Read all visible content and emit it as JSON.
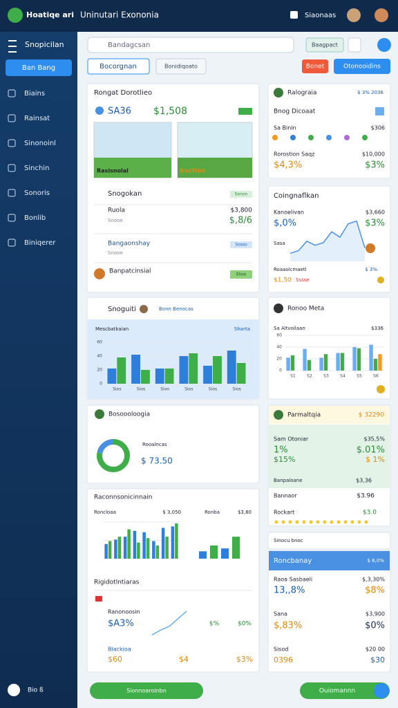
{
  "header": {
    "brand": "Hoatiqe ari",
    "title": "Uninutari Exononia",
    "user": "Siaonaas"
  },
  "sidebar": {
    "title": "Snopicilan",
    "button": "Ban Bang",
    "items": [
      "Biains",
      "Rainsat",
      "Sinonoinl",
      "Sinchin",
      "Sonoris",
      "Bonlib",
      "Biniqerer"
    ],
    "footer": "Bio ß"
  },
  "toolbar": {
    "search": "Bandagcsan",
    "filter": "Baagpact",
    "tab_1": "Bocorgnan",
    "tab_2": "Bonidiqoato",
    "reset": "Bonet",
    "action": "Otonooidins"
  },
  "overview": {
    "title": "Rongat Dorotlieo",
    "stat": "SA36",
    "amount": "$1,508",
    "captions": [
      "Rasisnolal",
      "Suctios"
    ],
    "list_title": "Snogokan",
    "badge": "Sonon",
    "row_1": "Ruola",
    "row_1_sub": "Snooe",
    "row_1_amount": "$3,800",
    "row_1_value": "$,8/6",
    "row_2": "Bangaonshay",
    "row_2_sub": "Snooe",
    "row_2_badge": "Sosso",
    "row_3": "Banpatcinsial",
    "row_3_badge": "Shoo"
  },
  "profile": {
    "title": "Ralograia",
    "meta": "$ 3% 2036",
    "subtitle": "Bnog Dicoaat",
    "row_label": "Sa Binin",
    "row_value": "$306",
    "label_2": "Rorostion Saqz",
    "value_2": "$10,000",
    "big_1": "$4,3%",
    "big_2": "$3%"
  },
  "trend": {
    "title": "Coingnaflkan",
    "label_1": "Kanoelivan",
    "value_1": "$3,660",
    "big_1": "$,0%",
    "big_2": "$3%",
    "label_2": "Sasa",
    "label_3": "Roaaolcmaetl",
    "value_3": "$ 3%",
    "foot": "$1,50",
    "foot_red": "Sssse",
    "values": [
      12,
      16,
      30,
      24,
      28,
      44,
      36,
      56,
      60,
      20
    ],
    "ylim": [
      0,
      70
    ]
  },
  "spend": {
    "title": "Snoguiti",
    "chip": "Bonn Benocas",
    "header": "Mescbatkaian",
    "header_value": "Sharta",
    "categories": [
      "Sios",
      "Sios",
      "Sioo",
      "Sios",
      "Sios",
      "Sios"
    ],
    "ylim": [
      0,
      60
    ],
    "yticks": [
      0,
      20,
      40,
      60
    ],
    "series": [
      {
        "color": "#2f7fd8",
        "values": [
          22,
          42,
          22,
          40,
          26,
          48
        ]
      },
      {
        "color": "#3fae49",
        "values": [
          38,
          20,
          22,
          44,
          40,
          30
        ]
      }
    ]
  },
  "profile_2": {
    "title": "Ronoo Meta",
    "header": "Sa Altvoilaan",
    "header_value": "$336",
    "categories": [
      "S1",
      "S2",
      "S3",
      "S4",
      "S5",
      "S6"
    ],
    "ylim": [
      0,
      60
    ],
    "yticks": [
      0,
      20,
      40,
      60
    ],
    "series": [
      {
        "color": "#6aaef0",
        "values": [
          22,
          37,
          22,
          30,
          40,
          44
        ]
      },
      {
        "color": "#3fae49",
        "values": [
          26,
          18,
          28,
          30,
          38,
          20
        ]
      },
      {
        "color": "#f39a1e",
        "values": [
          0,
          0,
          0,
          0,
          0,
          28
        ]
      }
    ]
  },
  "donut": {
    "title": "Bosoooloogia",
    "label": "Rooalncas",
    "amount": "$ 73.50",
    "values": [
      78,
      22
    ],
    "colors": [
      "#3fae49",
      "#4a90e2"
    ]
  },
  "finance": {
    "title": "Parmaltqia",
    "meta": "$ 32290",
    "label_1": "Sam Otoniar",
    "value_1": "$35,5%",
    "big_1": "1%",
    "big_2": "$.01%",
    "big_3": "$15%",
    "big_4": "$ 1%",
    "label_2": "Banpaloane",
    "value_2": "$3,36",
    "label_3": "Bannaor",
    "value_3": "$3.96",
    "label_4": "Rockart",
    "value_4": "$3.0"
  },
  "report": {
    "title": "Raconnsonicinnain",
    "header": "Roncloaa",
    "header_value": "$ 3,050",
    "header_2": "Ronba",
    "header_2_value": "$3,80",
    "ylim": [
      0,
      50
    ],
    "yticks": [
      0,
      25,
      50
    ],
    "series": [
      {
        "color": "#2f7fd8",
        "values": [
          20,
          26,
          30,
          38,
          36,
          24,
          42,
          44
        ]
      },
      {
        "color": "#3fae49",
        "values": [
          24,
          30,
          40,
          22,
          28,
          18,
          30,
          48
        ]
      }
    ],
    "mini": [
      10,
      18,
      14,
      30
    ],
    "sub_title": "Rigidotlntiaras",
    "row_1": "Ranonoosin",
    "row_1_value": "$A3%",
    "row_1_a": "$%",
    "row_1_b": "$0%",
    "row_2": "Blackioa",
    "row_2_value": "$60",
    "row_2_a": "$4",
    "row_2_b": "$3%",
    "line": [
      5,
      10,
      14,
      22,
      30
    ]
  },
  "summary": {
    "bar": "Sinocu bnoc",
    "title": "Roncbanay",
    "meta": "$ 6,0%",
    "label_1": "Raoa Sasbaeli",
    "value_1": "$,3,30%",
    "big_1": "13,,8%",
    "big_2": "$8%",
    "label_2": "Sana",
    "value_2": "$3,900",
    "big_3": "$,83%",
    "big_4": "$0%",
    "label_3": "Sisod",
    "value_3": "$20 00",
    "big_5": "0396",
    "big_6": "$30"
  },
  "footer": {
    "button_1": "Sionnoaroinbn",
    "button_2": "Ouiomannn"
  }
}
